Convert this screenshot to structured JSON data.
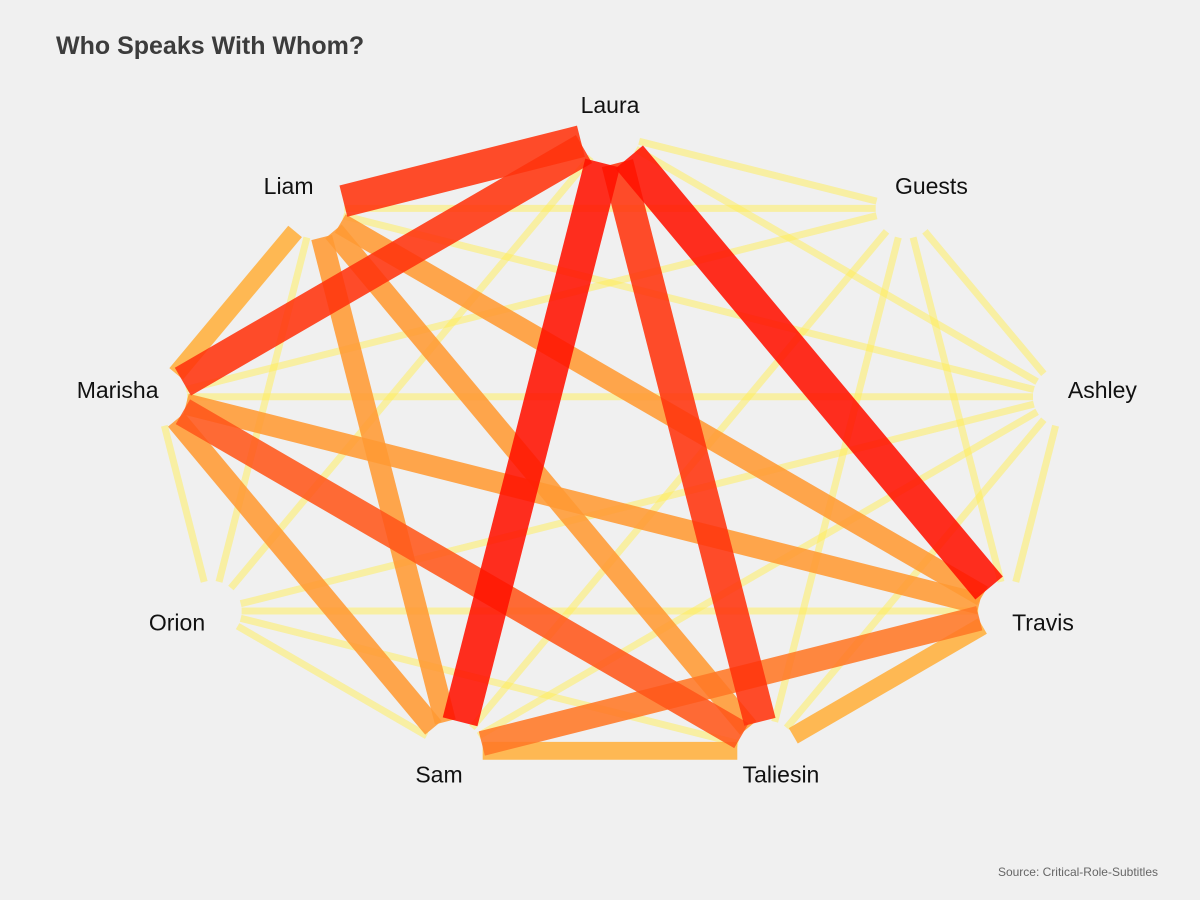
{
  "chart_data": {
    "type": "chord",
    "title": "Who Speaks With Whom?",
    "source": "Source: Critical-Role-Subtitles",
    "nodes": [
      "Laura",
      "Guests",
      "Ashley",
      "Travis",
      "Taliesin",
      "Sam",
      "Orion",
      "Marisha",
      "Liam"
    ],
    "links": [
      {
        "source": "Laura",
        "target": "Sam",
        "weight": 10
      },
      {
        "source": "Laura",
        "target": "Travis",
        "weight": 10
      },
      {
        "source": "Laura",
        "target": "Taliesin",
        "weight": 9
      },
      {
        "source": "Laura",
        "target": "Liam",
        "weight": 9
      },
      {
        "source": "Laura",
        "target": "Marisha",
        "weight": 9
      },
      {
        "source": "Marisha",
        "target": "Taliesin",
        "weight": 8
      },
      {
        "source": "Sam",
        "target": "Travis",
        "weight": 7
      },
      {
        "source": "Liam",
        "target": "Sam",
        "weight": 6
      },
      {
        "source": "Liam",
        "target": "Travis",
        "weight": 6
      },
      {
        "source": "Liam",
        "target": "Taliesin",
        "weight": 6
      },
      {
        "source": "Marisha",
        "target": "Travis",
        "weight": 6
      },
      {
        "source": "Marisha",
        "target": "Sam",
        "weight": 6
      },
      {
        "source": "Liam",
        "target": "Marisha",
        "weight": 5
      },
      {
        "source": "Taliesin",
        "target": "Travis",
        "weight": 5
      },
      {
        "source": "Sam",
        "target": "Taliesin",
        "weight": 5
      },
      {
        "source": "Laura",
        "target": "Guests",
        "weight": 2
      },
      {
        "source": "Laura",
        "target": "Ashley",
        "weight": 2
      },
      {
        "source": "Laura",
        "target": "Orion",
        "weight": 2
      },
      {
        "source": "Liam",
        "target": "Guests",
        "weight": 2
      },
      {
        "source": "Liam",
        "target": "Ashley",
        "weight": 2
      },
      {
        "source": "Liam",
        "target": "Orion",
        "weight": 2
      },
      {
        "source": "Guests",
        "target": "Ashley",
        "weight": 2
      },
      {
        "source": "Guests",
        "target": "Travis",
        "weight": 2
      },
      {
        "source": "Guests",
        "target": "Taliesin",
        "weight": 2
      },
      {
        "source": "Guests",
        "target": "Sam",
        "weight": 2
      },
      {
        "source": "Guests",
        "target": "Marisha",
        "weight": 2
      },
      {
        "source": "Ashley",
        "target": "Travis",
        "weight": 2
      },
      {
        "source": "Ashley",
        "target": "Taliesin",
        "weight": 2
      },
      {
        "source": "Ashley",
        "target": "Sam",
        "weight": 2
      },
      {
        "source": "Ashley",
        "target": "Orion",
        "weight": 2
      },
      {
        "source": "Ashley",
        "target": "Marisha",
        "weight": 2
      },
      {
        "source": "Travis",
        "target": "Orion",
        "weight": 2
      },
      {
        "source": "Taliesin",
        "target": "Orion",
        "weight": 2
      },
      {
        "source": "Sam",
        "target": "Orion",
        "weight": 2
      },
      {
        "source": "Orion",
        "target": "Marisha",
        "weight": 2
      }
    ],
    "colors": {
      "low": "#ffee55",
      "mid": "#ff9a33",
      "high": "#ff1100",
      "background": "#f0f0f0"
    }
  }
}
